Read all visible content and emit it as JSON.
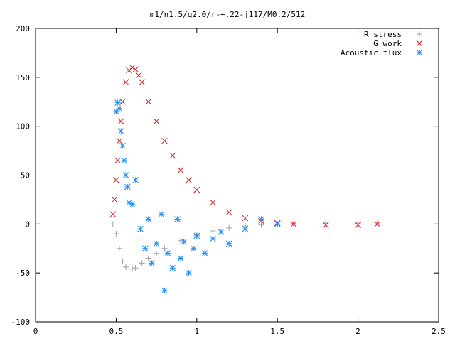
{
  "chart_data": {
    "type": "scatter",
    "title": "m1/n1.5/q2.0/r-+.22-j117/M0.2/512",
    "xlabel": "",
    "ylabel": "",
    "xlim": [
      0,
      2.5
    ],
    "ylim": [
      -100,
      200
    ],
    "xticks": [
      "0",
      "0.5",
      "1",
      "1.5",
      "2",
      "2.5"
    ],
    "yticks": [
      "-100",
      "-50",
      "0",
      "50",
      "100",
      "150",
      "200"
    ],
    "grid": false,
    "legend": "top-right",
    "series": [
      {
        "name": "R stress",
        "color": "#a0a0a0",
        "marker": "plus",
        "x": [
          0.48,
          0.5,
          0.52,
          0.54,
          0.56,
          0.58,
          0.6,
          0.62,
          0.66,
          0.7,
          0.75,
          0.8,
          0.9,
          1.0,
          1.1,
          1.2,
          1.3,
          1.4,
          1.5,
          1.6,
          1.8,
          2.0,
          2.12
        ],
        "y": [
          0,
          -10,
          -25,
          -38,
          -44,
          -46,
          -46,
          -45,
          -40,
          -35,
          -30,
          -25,
          -17,
          -11,
          -7,
          -4,
          -2,
          -1,
          0,
          0.5,
          1,
          1,
          1
        ]
      },
      {
        "name": "G work",
        "color": "#e01818",
        "marker": "x",
        "x": [
          0.48,
          0.49,
          0.5,
          0.51,
          0.52,
          0.53,
          0.54,
          0.56,
          0.58,
          0.6,
          0.62,
          0.64,
          0.66,
          0.7,
          0.75,
          0.8,
          0.85,
          0.9,
          0.95,
          1.0,
          1.1,
          1.2,
          1.3,
          1.4,
          1.5,
          1.6,
          1.8,
          2.0,
          2.12
        ],
        "y": [
          10,
          25,
          45,
          65,
          85,
          105,
          125,
          145,
          157,
          160,
          158,
          152,
          145,
          125,
          105,
          85,
          70,
          55,
          45,
          35,
          22,
          12,
          6,
          3,
          1,
          0,
          -1,
          -1,
          0
        ]
      },
      {
        "name": "Acoustic flux",
        "color": "#1a8cff",
        "marker": "asterisk",
        "x": [
          0.5,
          0.51,
          0.52,
          0.53,
          0.54,
          0.55,
          0.56,
          0.57,
          0.58,
          0.6,
          0.62,
          0.65,
          0.68,
          0.7,
          0.72,
          0.75,
          0.78,
          0.8,
          0.82,
          0.85,
          0.88,
          0.9,
          0.92,
          0.95,
          0.98,
          1.0,
          1.05,
          1.1,
          1.15,
          1.2,
          1.3,
          1.4,
          1.5
        ],
        "y": [
          115,
          124,
          118,
          95,
          80,
          65,
          50,
          38,
          22,
          20,
          45,
          -5,
          -25,
          5,
          -40,
          -20,
          10,
          -68,
          -30,
          -45,
          5,
          -35,
          -18,
          -50,
          -25,
          -12,
          -30,
          -15,
          -8,
          -20,
          -5,
          5,
          0
        ]
      }
    ]
  }
}
